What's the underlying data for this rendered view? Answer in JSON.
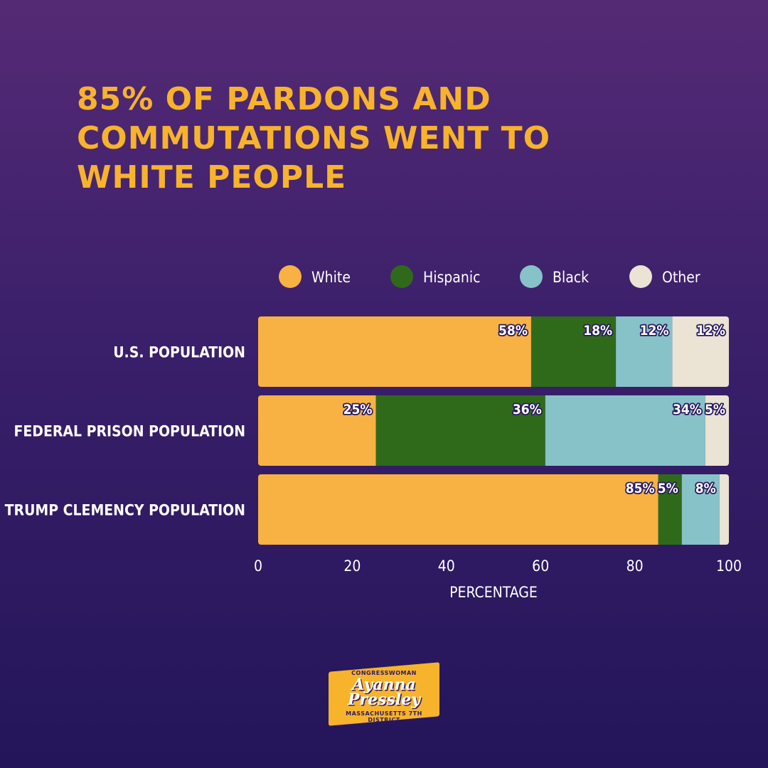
{
  "chart_data": {
    "type": "bar",
    "orientation": "horizontal",
    "stacked": true,
    "title": "85% OF PARDONS AND COMMUTATIONS WENT TO WHITE PEOPLE",
    "title_lines": [
      "85% OF PARDONS AND",
      "COMMUTATIONS WENT TO",
      "WHITE PEOPLE"
    ],
    "categories": [
      "U.S. POPULATION",
      "FEDERAL PRISON POPULATION",
      "TRUMP CLEMENCY POPULATION"
    ],
    "series": [
      {
        "name": "White",
        "color": "#f8b143",
        "values": [
          58,
          25,
          85
        ],
        "labels": [
          "58%",
          "25%",
          "85%"
        ]
      },
      {
        "name": "Hispanic",
        "color": "#2f6a1b",
        "values": [
          18,
          36,
          5
        ],
        "labels": [
          "18%",
          "36%",
          "5%"
        ]
      },
      {
        "name": "Black",
        "color": "#87c2c9",
        "values": [
          12,
          34,
          8
        ],
        "labels": [
          "12%",
          "34%",
          "8%"
        ]
      },
      {
        "name": "Other",
        "color": "#ebe3d3",
        "values": [
          12,
          5,
          2
        ],
        "labels": [
          "12%",
          "5%",
          ""
        ]
      }
    ],
    "xlabel": "PERCENTAGE",
    "ylabel": "",
    "xlim": [
      0,
      100
    ],
    "xticks": [
      0,
      20,
      40,
      60,
      80,
      100
    ],
    "legend_position": "top",
    "grid": false
  },
  "logo": {
    "line1": "CONGRESSWOMAN",
    "line2": "Ayanna",
    "line3": "Pressley",
    "line4": "MASSACHUSETTS 7TH DISTRICT"
  }
}
